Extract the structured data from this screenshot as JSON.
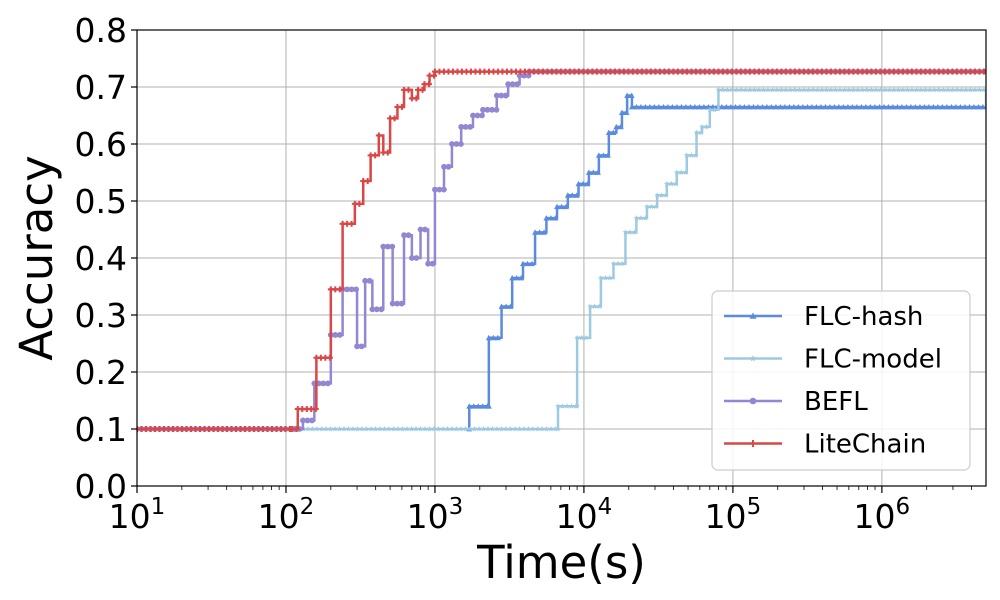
{
  "chart_data": {
    "type": "line",
    "title": "",
    "xlabel": "Time(s)",
    "ylabel": "Accuracy",
    "xscale": "log",
    "xlim": [
      10,
      5000000
    ],
    "ylim": [
      0,
      0.8
    ],
    "grid": true,
    "legend_position": "lower-right",
    "x_ticks": [
      {
        "value": 10,
        "base": "10",
        "exp": "1"
      },
      {
        "value": 100,
        "base": "10",
        "exp": "2"
      },
      {
        "value": 1000,
        "base": "10",
        "exp": "3"
      },
      {
        "value": 10000,
        "base": "10",
        "exp": "4"
      },
      {
        "value": 100000,
        "base": "10",
        "exp": "5"
      },
      {
        "value": 1000000,
        "base": "10",
        "exp": "6"
      }
    ],
    "y_ticks": [
      {
        "value": 0.0,
        "label": "0.0"
      },
      {
        "value": 0.1,
        "label": "0.1"
      },
      {
        "value": 0.2,
        "label": "0.2"
      },
      {
        "value": 0.3,
        "label": "0.3"
      },
      {
        "value": 0.4,
        "label": "0.4"
      },
      {
        "value": 0.5,
        "label": "0.5"
      },
      {
        "value": 0.6,
        "label": "0.6"
      },
      {
        "value": 0.7,
        "label": "0.7"
      },
      {
        "value": 0.8,
        "label": "0.8"
      }
    ],
    "series": [
      {
        "name": "FLC-hash",
        "color": "#5b8bdc",
        "marker": "triangle",
        "x": [
          1700,
          1700,
          2300,
          2300,
          2800,
          3300,
          3900,
          4700,
          5600,
          6600,
          7800,
          9200,
          10800,
          12600,
          14700,
          16500,
          18000,
          19500,
          21000,
          5000000
        ],
        "y": [
          0.1,
          0.14,
          0.14,
          0.26,
          0.315,
          0.365,
          0.39,
          0.445,
          0.47,
          0.49,
          0.51,
          0.53,
          0.55,
          0.58,
          0.62,
          0.63,
          0.655,
          0.685,
          0.665,
          0.665
        ]
      },
      {
        "name": "FLC-model",
        "color": "#9ecae1",
        "marker": "star",
        "x": [
          10,
          6700,
          6700,
          9000,
          9000,
          11000,
          13000,
          15800,
          19000,
          22500,
          26500,
          31000,
          36000,
          42000,
          49000,
          57000,
          62000,
          70000,
          80000,
          5000000
        ],
        "y": [
          0.1,
          0.1,
          0.14,
          0.14,
          0.26,
          0.315,
          0.365,
          0.39,
          0.445,
          0.47,
          0.49,
          0.51,
          0.53,
          0.55,
          0.58,
          0.62,
          0.63,
          0.66,
          0.695,
          0.665
        ]
      },
      {
        "name": "BEFL",
        "color": "#9386d3",
        "marker": "circle",
        "x": [
          10,
          115,
          130,
          155,
          200,
          240,
          300,
          340,
          380,
          450,
          520,
          620,
          700,
          800,
          900,
          1000,
          1150,
          1300,
          1500,
          1800,
          2100,
          2600,
          3100,
          3700,
          4300,
          5000000
        ],
        "y": [
          0.1,
          0.1,
          0.115,
          0.18,
          0.265,
          0.345,
          0.245,
          0.36,
          0.31,
          0.42,
          0.32,
          0.44,
          0.4,
          0.45,
          0.39,
          0.52,
          0.56,
          0.6,
          0.63,
          0.65,
          0.66,
          0.685,
          0.705,
          0.72,
          0.727,
          0.727
        ]
      },
      {
        "name": "LiteChain",
        "color": "#d94747",
        "marker": "plus",
        "x": [
          10,
          110,
          120,
          160,
          200,
          240,
          290,
          330,
          370,
          420,
          450,
          500,
          560,
          620,
          700,
          770,
          850,
          920,
          1000,
          5000000
        ],
        "y": [
          0.1,
          0.1,
          0.135,
          0.225,
          0.345,
          0.46,
          0.495,
          0.535,
          0.58,
          0.615,
          0.585,
          0.645,
          0.665,
          0.695,
          0.68,
          0.695,
          0.705,
          0.72,
          0.727,
          0.727
        ]
      }
    ]
  }
}
